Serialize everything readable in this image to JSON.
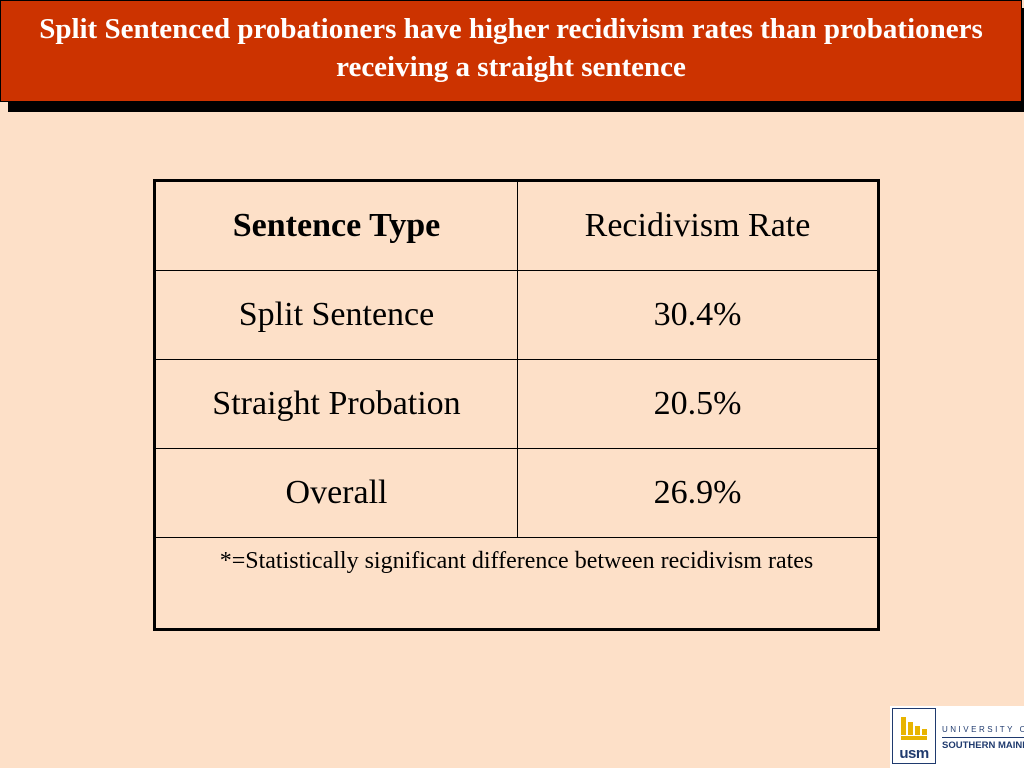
{
  "slide": {
    "title": "Split Sentenced probationers have higher recidivism rates than probationers receiving a straight sentence",
    "colors": {
      "title_bg": "#cc3300",
      "page_bg": "#fde0c8",
      "title_text": "#ffffff"
    }
  },
  "table": {
    "headers": [
      "Sentence Type",
      "Recidivism Rate"
    ],
    "rows": [
      [
        "Split Sentence",
        "30.4%"
      ],
      [
        "Straight Probation",
        "20.5%"
      ],
      [
        "Overall",
        "26.9%"
      ]
    ],
    "note": "*=Statistically significant difference between recidivism rates"
  },
  "logo": {
    "mark_text": "usm",
    "university_text": "UNIVERSITY OF",
    "name_text": "SOUTHERN MAINE",
    "icon": "usm-flame-icon"
  }
}
